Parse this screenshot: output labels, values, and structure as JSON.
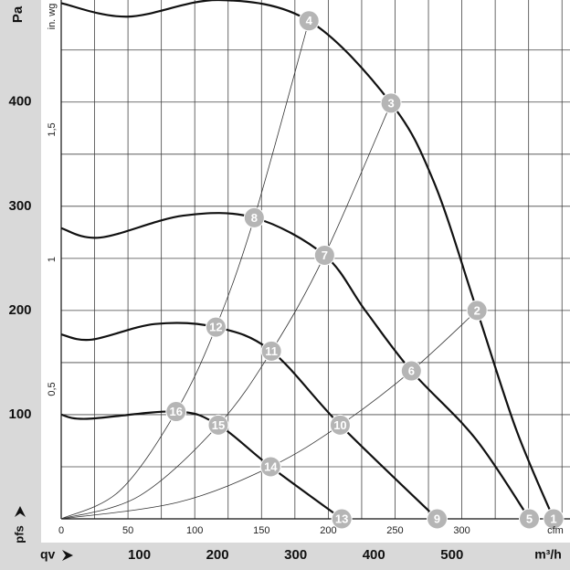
{
  "chart_data": {
    "type": "line",
    "y_axis_label": "Pa",
    "y2_axis_label": "in. wg",
    "x_axis_label": "m³/h",
    "x2_axis_label": "cfm",
    "x_symbol": "qv",
    "y_symbol": "pfs",
    "xlim": [
      0,
      651
    ],
    "ylim": [
      0,
      498
    ],
    "xticks": [
      100,
      200,
      300,
      400,
      500
    ],
    "yticks": [
      100,
      200,
      300,
      400
    ],
    "x2lim": [
      0,
      381
    ],
    "x2ticks": [
      0,
      50,
      100,
      150,
      200,
      250,
      300
    ],
    "y2lim": [
      0,
      2.0
    ],
    "y2ticks": [
      {
        "value": 0.5,
        "label": "0,5"
      },
      {
        "value": 1,
        "label": "1"
      },
      {
        "value": 1.5,
        "label": "1,5"
      }
    ],
    "x2grid": [
      0,
      25,
      50,
      75,
      100,
      125,
      150,
      175,
      200,
      225,
      250,
      275,
      300,
      325,
      350,
      375
    ],
    "ygrid": [
      50,
      100,
      150,
      200,
      250,
      300,
      350,
      400,
      450
    ],
    "grid": true,
    "series": [
      {
        "color": "#111111",
        "x": [
          0,
          85,
          202,
          317,
          422,
          477,
          532,
          582,
          630
        ],
        "values": [
          495,
          482,
          498,
          478,
          399,
          323,
          200,
          86,
          0
        ]
      },
      {
        "color": "#111111",
        "x": [
          0,
          50,
          156,
          247,
          337,
          389,
          448,
          530,
          599
        ],
        "values": [
          279,
          270,
          291,
          289,
          253,
          200,
          142,
          77,
          0
        ]
      },
      {
        "color": "#111111",
        "x": [
          0,
          39,
          120,
          198,
          269,
          357,
          481
        ],
        "values": [
          177,
          172,
          187,
          184,
          161,
          90,
          0
        ]
      },
      {
        "color": "#111111",
        "x": [
          0,
          33,
          147,
          201,
          268,
          359
        ],
        "values": [
          100,
          96,
          103,
          90,
          50,
          0
        ]
      }
    ],
    "system_curves": [
      {
        "color": "#333333",
        "x": [
          0,
          75,
          147,
          198,
          247,
          317
        ],
        "values": [
          0,
          27,
          103,
          184,
          289,
          478
        ]
      },
      {
        "color": "#333333",
        "x": [
          0,
          100,
          201,
          269,
          337,
          422
        ],
        "values": [
          0,
          22,
          90,
          161,
          253,
          399
        ]
      },
      {
        "color": "#333333",
        "x": [
          0,
          150,
          268,
          357,
          448,
          532
        ],
        "values": [
          0,
          16,
          50,
          90,
          142,
          200
        ]
      }
    ],
    "points": [
      {
        "label": "1",
        "x": 630,
        "y": 0
      },
      {
        "label": "2",
        "x": 532,
        "y": 200
      },
      {
        "label": "3",
        "x": 422,
        "y": 399
      },
      {
        "label": "4",
        "x": 317,
        "y": 478
      },
      {
        "label": "5",
        "x": 599,
        "y": 0
      },
      {
        "label": "6",
        "x": 448,
        "y": 142
      },
      {
        "label": "7",
        "x": 337,
        "y": 253
      },
      {
        "label": "8",
        "x": 247,
        "y": 289
      },
      {
        "label": "9",
        "x": 481,
        "y": 0
      },
      {
        "label": "10",
        "x": 357,
        "y": 90
      },
      {
        "label": "11",
        "x": 269,
        "y": 161
      },
      {
        "label": "12",
        "x": 198,
        "y": 184
      },
      {
        "label": "13",
        "x": 359,
        "y": 0
      },
      {
        "label": "14",
        "x": 268,
        "y": 50
      },
      {
        "label": "15",
        "x": 201,
        "y": 90
      },
      {
        "label": "16",
        "x": 147,
        "y": 103
      }
    ]
  }
}
